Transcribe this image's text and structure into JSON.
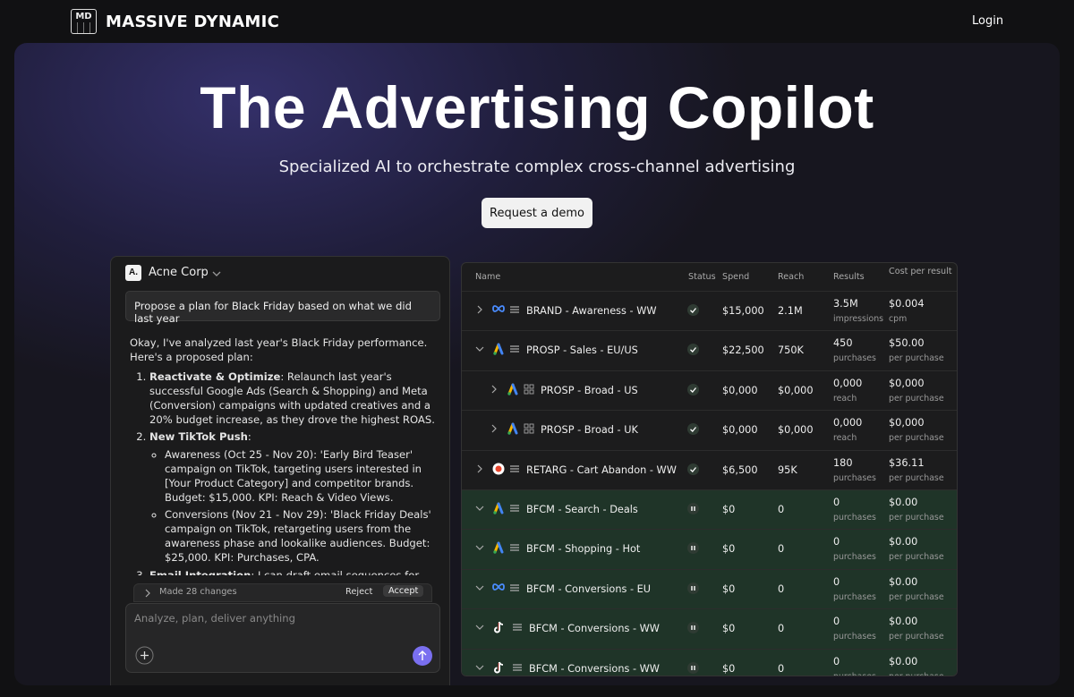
{
  "header": {
    "logo": "MD",
    "brand": "MASSIVE DYNAMIC",
    "login": "Login"
  },
  "hero": {
    "title": "The Advertising Copilot",
    "subtitle": "Specialized AI to orchestrate complex cross-channel advertising",
    "button": "Request a demo"
  },
  "chat": {
    "avatar": "A.",
    "workspace": "Acne Corp",
    "user_message": "Propose a plan for Black Friday based on what we did last year",
    "intro": "Okay, I've analyzed last year's Black Friday performance. Here's a proposed plan:",
    "items": [
      {
        "title": "Reactivate & Optimize",
        "text": ": Relaunch last year's successful Google Ads (Search & Shopping) and Meta (Conversion) campaigns with updated creatives and a 20% budget increase, as they drove the highest ROAS."
      },
      {
        "title": "New TikTok Push",
        "text": ":",
        "sub": [
          "Awareness (Oct 25 - Nov 20): 'Early Bird Teaser' campaign on TikTok, targeting users interested in [Your Product Category] and competitor brands. Budget: $15,000. KPI: Reach & Video Views.",
          "Conversions (Nov 21 - Nov 29): 'Black Friday Deals' campaign on TikTok, retargeting users from the awareness phase and lookalike audiences. Budget: $25,000. KPI: Purchases, CPA."
        ]
      },
      {
        "title": "Email Integration",
        "text": ": I can draft email sequences for your"
      }
    ],
    "changes": "Made 28 changes",
    "reject": "Reject",
    "accept": "Accept",
    "placeholder": "Analyze, plan, deliver anything"
  },
  "table": {
    "columns": [
      "Name",
      "Status",
      "Spend",
      "Reach",
      "Results",
      "Cost per result"
    ],
    "rows": [
      {
        "name": "BRAND - Awareness - WW",
        "spend": "$15,000",
        "reach": "2.1M",
        "result": "3.5M",
        "result_unit": "impressions",
        "cost": "$0.004",
        "cost_unit": "cpm"
      },
      {
        "name": "PROSP - Sales - EU/US",
        "spend": "$22,500",
        "reach": "750K",
        "result": "450",
        "result_unit": "purchases",
        "cost": "$50.00",
        "cost_unit": "per purchase"
      },
      {
        "name": "PROSP - Broad - US",
        "spend": "$0,000",
        "reach": "$0,000",
        "result": "0,000",
        "result_unit": "reach",
        "cost": "$0,000",
        "cost_unit": "per purchase"
      },
      {
        "name": "PROSP - Broad - UK",
        "spend": "$0,000",
        "reach": "$0,000",
        "result": "0,000",
        "result_unit": "reach",
        "cost": "$0,000",
        "cost_unit": "per purchase"
      },
      {
        "name": "RETARG - Cart Abandon - WW",
        "spend": "$6,500",
        "reach": "95K",
        "result": "180",
        "result_unit": "purchases",
        "cost": "$36.11",
        "cost_unit": "per purchase"
      },
      {
        "name": "BFCM - Search - Deals",
        "spend": "$0",
        "reach": "0",
        "result": "0",
        "result_unit": "purchases",
        "cost": "$0.00",
        "cost_unit": "per purchase"
      },
      {
        "name": "BFCM - Shopping - Hot",
        "spend": "$0",
        "reach": "0",
        "result": "0",
        "result_unit": "purchases",
        "cost": "$0.00",
        "cost_unit": "per purchase"
      },
      {
        "name": "BFCM - Conversions - EU",
        "spend": "$0",
        "reach": "0",
        "result": "0",
        "result_unit": "purchases",
        "cost": "$0.00",
        "cost_unit": "per purchase"
      },
      {
        "name": "BFCM - Conversions - WW",
        "spend": "$0",
        "reach": "0",
        "result": "0",
        "result_unit": "purchases",
        "cost": "$0.00",
        "cost_unit": "per purchase"
      },
      {
        "name": "BFCM - Conversions - WW",
        "spend": "$0",
        "reach": "0",
        "result": "0",
        "result_unit": "purchases",
        "cost": "$0.00",
        "cost_unit": "per purchase"
      }
    ]
  }
}
